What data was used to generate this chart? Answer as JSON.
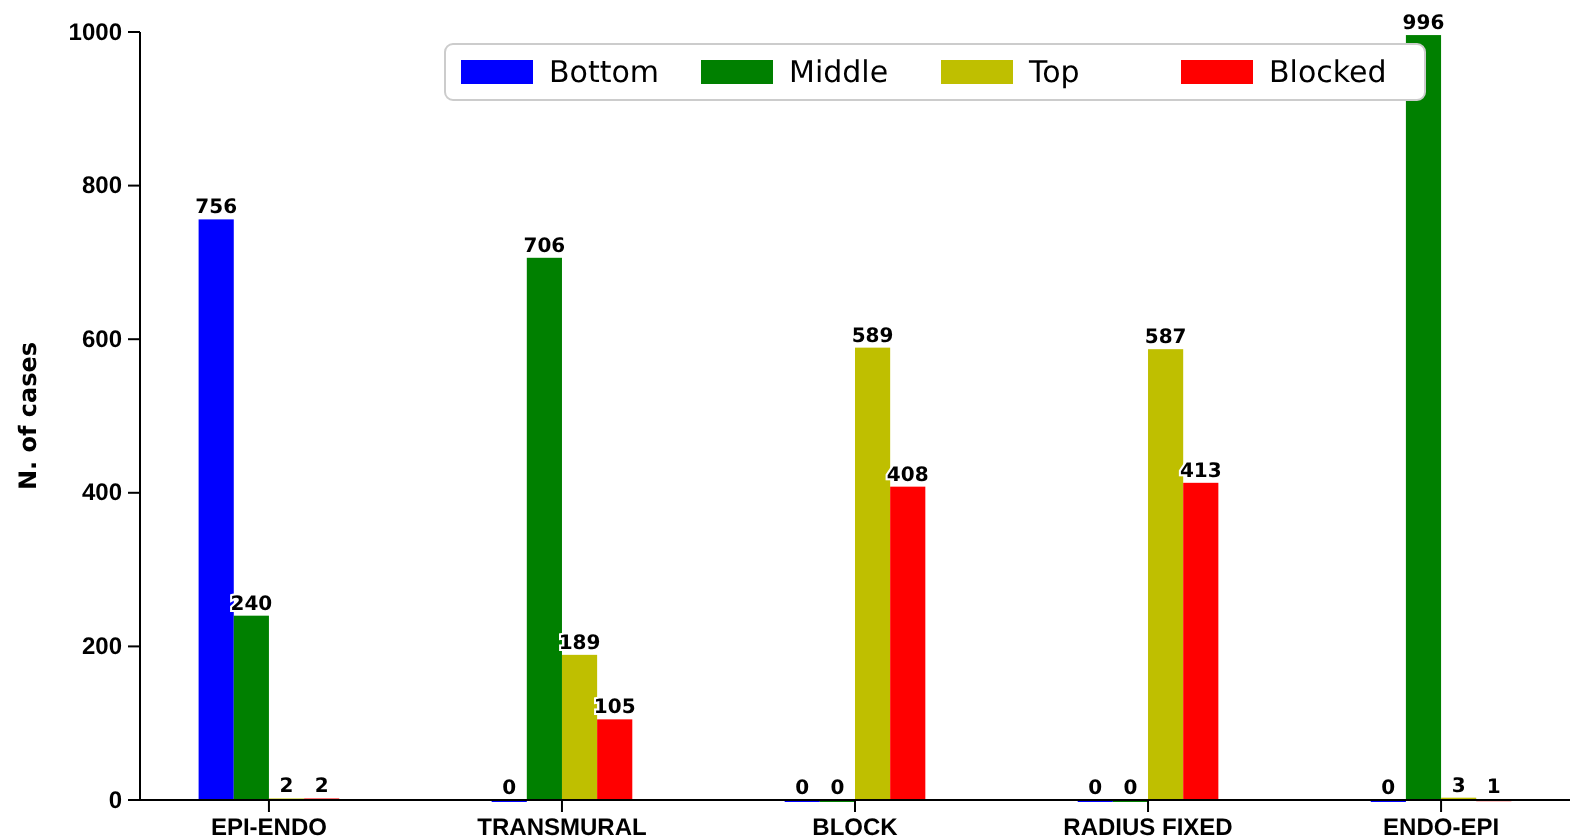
{
  "chart_data": {
    "type": "bar",
    "ylabel": "N. of cases",
    "categories": [
      "EPI-ENDO",
      "TRANSMURAL",
      "BLOCK",
      "RADIUS FIXED",
      "ENDO-EPI"
    ],
    "series": [
      {
        "name": "Bottom",
        "color": "#0000ff",
        "values": [
          756,
          0,
          0,
          0,
          0
        ]
      },
      {
        "name": "Middle",
        "color": "#008000",
        "values": [
          240,
          706,
          0,
          0,
          996
        ]
      },
      {
        "name": "Top",
        "color": "#bfbf00",
        "values": [
          2,
          189,
          589,
          587,
          3
        ]
      },
      {
        "name": "Blocked",
        "color": "#ff0000",
        "values": [
          2,
          105,
          408,
          413,
          1
        ]
      }
    ],
    "ylim": [
      0,
      1000
    ],
    "yticks": [
      0,
      200,
      400,
      600,
      800,
      1000
    ],
    "data_labels": true,
    "legend": "top",
    "grid": false
  }
}
